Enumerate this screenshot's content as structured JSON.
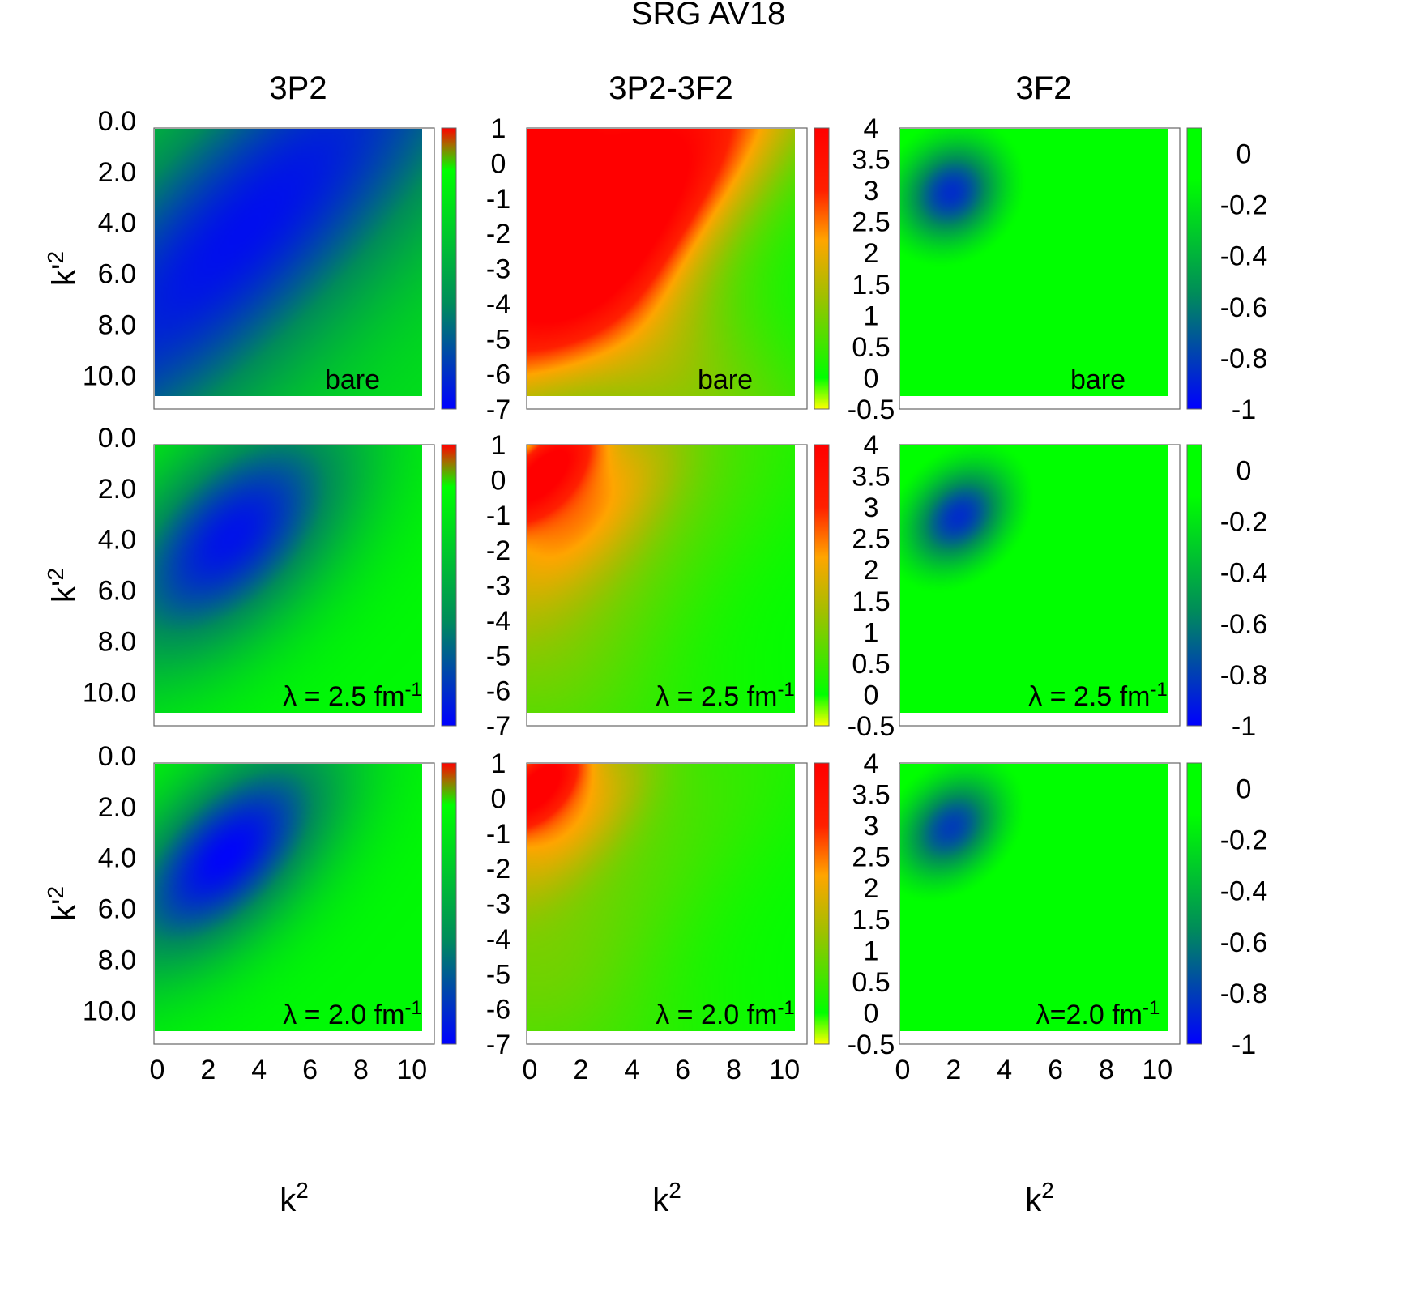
{
  "chart_data": {
    "type": "heatmap",
    "title": "SRG AV18",
    "xlabel": "k",
    "xlabel_sup": "2",
    "ylabel": "k'",
    "ylabel_sup": "2",
    "x_range": [
      0,
      10.5
    ],
    "y_range": [
      0,
      10.5
    ],
    "x_ticks": [
      "0",
      "2",
      "4",
      "6",
      "8",
      "10"
    ],
    "x_tick_values": [
      0,
      2,
      4,
      6,
      8,
      10
    ],
    "y_ticks": [
      "0.0",
      "2.0",
      "4.0",
      "6.0",
      "8.0",
      "10.0"
    ],
    "y_tick_values": [
      0,
      2,
      4,
      6,
      8,
      10
    ],
    "y_inverted": true,
    "colormap": [
      "#0000ff",
      "#008c5a",
      "#00ff00",
      "#ffa500",
      "#ff0000"
    ],
    "columns": [
      {
        "title": "3P2",
        "colorbar": {
          "min": -7,
          "max": 1,
          "ticks": [
            "1",
            "0",
            "-1",
            "-2",
            "-3",
            "-4",
            "-5",
            "-6",
            "-7"
          ],
          "tick_values": [
            1,
            0,
            -1,
            -2,
            -3,
            -4,
            -5,
            -6,
            -7
          ],
          "stops": [
            {
              "value": -7,
              "color": "#0000ff"
            },
            {
              "value": -4,
              "color": "#008c5a"
            },
            {
              "value": -0.2,
              "color": "#00ff00"
            },
            {
              "value": 0.5,
              "color": "#a07000"
            },
            {
              "value": 1,
              "color": "#ff0000"
            }
          ]
        }
      },
      {
        "title": "3P2-3F2",
        "colorbar": {
          "min": -0.5,
          "max": 4,
          "ticks": [
            "4",
            "3.5",
            "3",
            "2.5",
            "2",
            "1.5",
            "1",
            "0.5",
            "0",
            "-0.5"
          ],
          "tick_values": [
            4,
            3.5,
            3,
            2.5,
            2,
            1.5,
            1,
            0.5,
            0,
            -0.5
          ],
          "stops": [
            {
              "value": -0.5,
              "color": "#ffff00"
            },
            {
              "value": 0,
              "color": "#00ff00"
            },
            {
              "value": 1.3,
              "color": "#a0c000"
            },
            {
              "value": 2.2,
              "color": "#ffa500"
            },
            {
              "value": 3.0,
              "color": "#ff2000"
            },
            {
              "value": 4,
              "color": "#ff0000"
            }
          ]
        }
      },
      {
        "title": "3F2",
        "colorbar": {
          "min": -1,
          "max": 0.1,
          "ticks": [
            "0",
            "-0.2",
            "-0.4",
            "-0.6",
            "-0.8",
            "-1"
          ],
          "tick_values": [
            0,
            -0.2,
            -0.4,
            -0.6,
            -0.8,
            -1
          ],
          "stops": [
            {
              "value": -1,
              "color": "#0000ff"
            },
            {
              "value": -0.55,
              "color": "#008c5a"
            },
            {
              "value": -0.1,
              "color": "#00ff00"
            },
            {
              "value": 0.1,
              "color": "#00ff00"
            }
          ]
        }
      }
    ],
    "rows": [
      {
        "labels": [
          "bare",
          "bare",
          "bare"
        ]
      },
      {
        "labels": [
          "λ = 2.5 fm",
          "λ = 2.5 fm",
          "λ = 2.5 fm"
        ],
        "label_sup": "-1"
      },
      {
        "labels": [
          "λ = 2.0 fm",
          "λ = 2.0 fm",
          "λ=2.0 fm"
        ],
        "label_sup": "-1"
      }
    ],
    "panels": [
      [
        {
          "base": -1.2,
          "features": [
            {
              "cx": 3.5,
              "cy": 4.0,
              "su": 12.0,
              "sv": 3.5,
              "dir": "anti",
              "amp": -5.5
            }
          ]
        },
        {
          "base": 0.0,
          "features": [
            {
              "cx": 0.3,
              "cy": 0.3,
              "su": 1.3,
              "sv": 0.9,
              "dir": "anti",
              "amp": 3.5
            },
            {
              "cx": 4.0,
              "cy": 4.0,
              "su": 4.5,
              "sv": 1.5,
              "dir": "anti",
              "amp": 1.5
            },
            {
              "cx": 2.5,
              "cy": 2.5,
              "su": 9.0,
              "sv": 3.2,
              "dir": "anti",
              "amp": 2.8
            },
            {
              "cx": 3.0,
              "cy": 7.0,
              "su": 9.0,
              "sv": 2.8,
              "dir": "diag",
              "amp": 1.2
            },
            {
              "cx": 2.5,
              "cy": 1.5,
              "su": 6.0,
              "sv": 3.0,
              "dir": "anti",
              "amp": 1.0
            }
          ]
        },
        {
          "base": 0.0,
          "features": [
            {
              "cx": 2.0,
              "cy": 2.5,
              "su": 1.5,
              "sv": 1.3,
              "dir": "anti",
              "amp": -0.85
            }
          ]
        }
      ],
      [
        {
          "base": -0.4,
          "features": [
            {
              "cx": 3.0,
              "cy": 3.6,
              "su": 4.5,
              "sv": 2.4,
              "dir": "anti",
              "amp": -6.2
            }
          ]
        },
        {
          "base": 0.0,
          "features": [
            {
              "cx": 0.5,
              "cy": 1.0,
              "su": 2.2,
              "sv": 0.9,
              "dir": "anti",
              "amp": 3.5
            },
            {
              "cx": 2.0,
              "cy": 2.5,
              "su": 3.5,
              "sv": 1.6,
              "dir": "anti",
              "amp": 1.8
            },
            {
              "cx": 4.0,
              "cy": 4.0,
              "su": 6.5,
              "sv": 2.6,
              "dir": "anti",
              "amp": 0.7
            },
            {
              "cx": 0.5,
              "cy": 9.0,
              "su": 6.0,
              "sv": 3.5,
              "dir": "diag",
              "amp": 0.5
            }
          ]
        },
        {
          "base": 0.0,
          "features": [
            {
              "cx": 2.3,
              "cy": 2.8,
              "su": 1.6,
              "sv": 1.2,
              "dir": "anti",
              "amp": -0.85
            }
          ]
        }
      ],
      [
        {
          "base": -0.4,
          "features": [
            {
              "cx": 2.8,
              "cy": 3.6,
              "su": 4.0,
              "sv": 2.0,
              "dir": "anti",
              "amp": -6.5
            }
          ]
        },
        {
          "base": 0.0,
          "features": [
            {
              "cx": 0.3,
              "cy": 0.8,
              "su": 1.8,
              "sv": 0.8,
              "dir": "anti",
              "amp": 3.5
            },
            {
              "cx": 1.5,
              "cy": 2.0,
              "su": 3.0,
              "sv": 1.4,
              "dir": "anti",
              "amp": 1.8
            },
            {
              "cx": 4.0,
              "cy": 4.0,
              "su": 6.5,
              "sv": 2.6,
              "dir": "anti",
              "amp": 0.6
            },
            {
              "cx": 0.5,
              "cy": 9.0,
              "su": 6.0,
              "sv": 3.5,
              "dir": "diag",
              "amp": 0.5
            }
          ]
        },
        {
          "base": 0.0,
          "features": [
            {
              "cx": 2.0,
              "cy": 2.5,
              "su": 1.6,
              "sv": 1.2,
              "dir": "anti",
              "amp": -0.8
            }
          ]
        }
      ]
    ]
  }
}
